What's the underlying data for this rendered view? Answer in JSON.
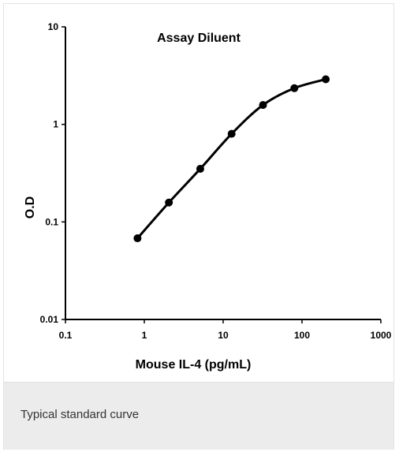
{
  "caption": "Typical standard curve",
  "colors": {
    "line": "#000000",
    "caption_band": "#ececec"
  },
  "chart_data": {
    "type": "line",
    "title": "Assay Diluent",
    "xlabel": "Mouse IL-4 (pg/mL)",
    "ylabel": "O.D",
    "x_scale": "log",
    "y_scale": "log",
    "xlim": [
      0.1,
      1000
    ],
    "ylim": [
      0.01,
      10
    ],
    "x_ticks": [
      "0.1",
      "1",
      "10",
      "100",
      "1000"
    ],
    "y_ticks": [
      "0.01",
      "0.1",
      "1",
      "10"
    ],
    "grid": false,
    "x": [
      0.82,
      2.05,
      5.12,
      12.8,
      32,
      80,
      200
    ],
    "y": [
      0.068,
      0.158,
      0.35,
      0.8,
      1.58,
      2.35,
      2.9
    ]
  }
}
